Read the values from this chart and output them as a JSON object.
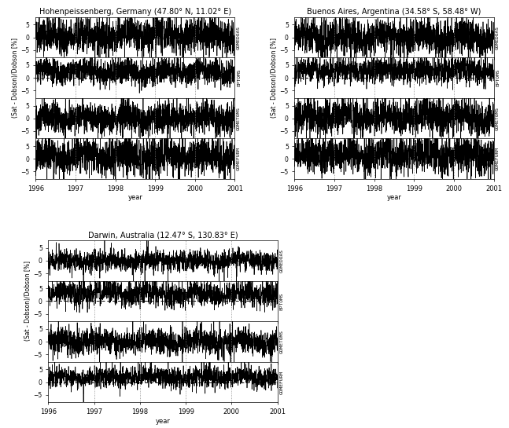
{
  "stations": [
    {
      "title": "Hohenpeissenberg, Germany (47.80° N, 11.02° E)",
      "instruments": [
        "GOMEDOAS",
        "EPTOMS",
        "GOMETOMS",
        "GOMEFURM"
      ],
      "ylim": [
        -8,
        8
      ],
      "yticks": [
        -5,
        0,
        5
      ],
      "dashed_zero": [
        false,
        true,
        false,
        true
      ],
      "mean_offsets": [
        0.5,
        2.5,
        0.0,
        1.0
      ],
      "amplitudes": [
        3.5,
        2.5,
        3.0,
        3.5
      ]
    },
    {
      "title": "Buenos Aires, Argentina (34.58° S, 58.48° W)",
      "instruments": [
        "GOMEDOAS",
        "EPTOMS",
        "GOMETOMS",
        "GOMEFURM"
      ],
      "ylim": [
        -8,
        8
      ],
      "yticks": [
        -5,
        0,
        5
      ],
      "dashed_zero": [
        true,
        true,
        true,
        true
      ],
      "mean_offsets": [
        0.0,
        3.0,
        0.5,
        1.5
      ],
      "amplitudes": [
        3.5,
        2.5,
        3.5,
        3.5
      ]
    },
    {
      "title": "Darwin, Australia (12.47° S, 130.83° E)",
      "instruments": [
        "GOMEDOAS",
        "EPTOMS",
        "GOMETOMS",
        "GOMEFURM"
      ],
      "ylim": [
        -8,
        8
      ],
      "yticks": [
        -5,
        0,
        5
      ],
      "dashed_zero": [
        false,
        true,
        false,
        true
      ],
      "mean_offsets": [
        0.0,
        3.0,
        0.0,
        2.0
      ],
      "amplitudes": [
        2.0,
        2.5,
        2.5,
        2.0
      ]
    }
  ],
  "x_start": 1996.0,
  "x_end": 2001.0,
  "xlabel": "year",
  "ylabel": "(Sat - Dobson)/Dobson [%]",
  "xticks": [
    1996,
    1997,
    1998,
    1999,
    2000,
    2001
  ],
  "vline_color": "gray",
  "vline_years": [
    1997,
    1998,
    1999,
    2000
  ],
  "linewidth": 0.5,
  "n_points": 1826,
  "seed": 42
}
